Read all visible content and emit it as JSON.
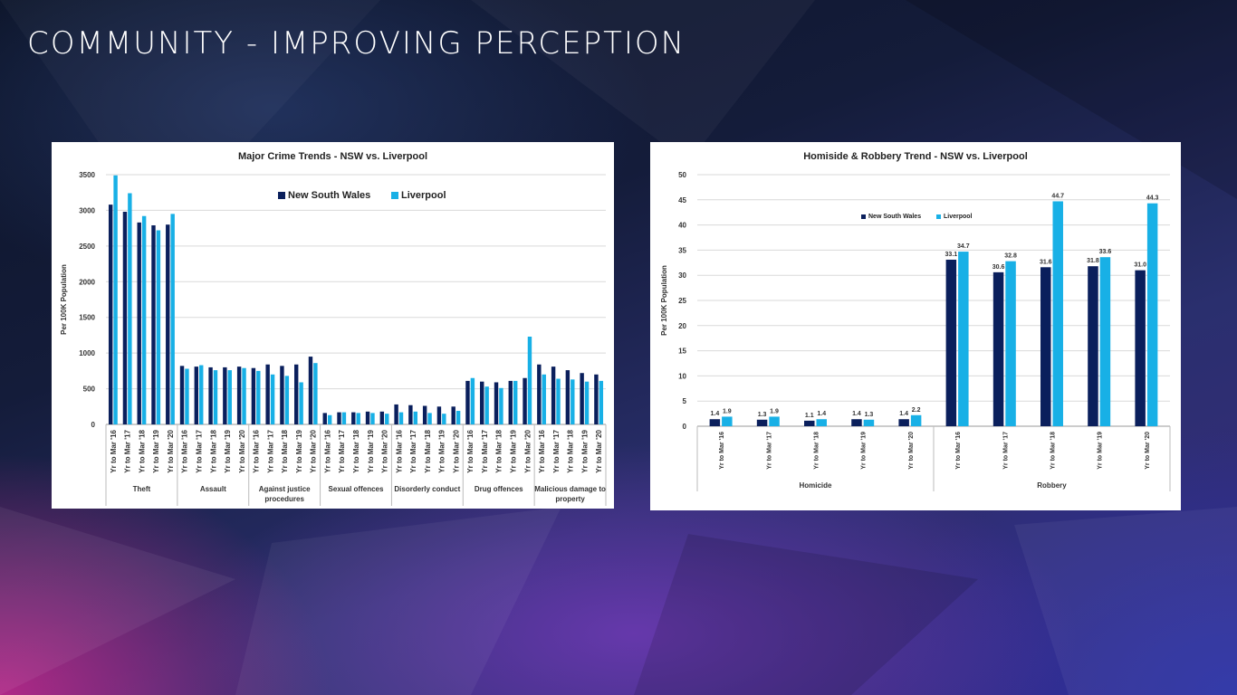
{
  "page": {
    "title": "COMMUNITY - IMPROVING PERCEPTION"
  },
  "colors": {
    "nsw": "#0a1f5c",
    "liverpool": "#18b0e6",
    "grid": "#d9d9d9"
  },
  "chart_data": [
    {
      "type": "bar",
      "title": "Major Crime Trends - NSW vs. Liverpool",
      "ylabel": "Per 100K Population",
      "xlabel": "",
      "ylim": [
        0,
        3500
      ],
      "yticks": [
        0,
        500,
        1000,
        1500,
        2000,
        2500,
        3000,
        3500
      ],
      "legend_placement": "top-center",
      "grid": true,
      "groups": [
        {
          "name": "Theft",
          "categories": [
            "Yr to Mar '16",
            "Yr to Mar '17",
            "Yr to Mar '18",
            "Yr to Mar '19",
            "Yr to Mar '20"
          ],
          "nsw": [
            3080,
            2980,
            2830,
            2790,
            2800
          ],
          "liverpool": [
            3490,
            3240,
            2920,
            2720,
            2950
          ]
        },
        {
          "name": "Assault",
          "categories": [
            "Yr to Mar '16",
            "Yr to Mar '17",
            "Yr to Mar '18",
            "Yr to Mar '19",
            "Yr to Mar '20"
          ],
          "nsw": [
            820,
            810,
            800,
            800,
            810
          ],
          "liverpool": [
            780,
            830,
            760,
            760,
            790
          ]
        },
        {
          "name": "Against justice procedures",
          "categories": [
            "Yr to Mar '16",
            "Yr to Mar '17",
            "Yr to Mar '18",
            "Yr to Mar '19",
            "Yr to Mar '20"
          ],
          "nsw": [
            790,
            840,
            820,
            840,
            950
          ],
          "liverpool": [
            750,
            700,
            680,
            590,
            860
          ]
        },
        {
          "name": "Sexual offences",
          "categories": [
            "Yr to Mar '16",
            "Yr to Mar '17",
            "Yr to Mar '18",
            "Yr to Mar '19",
            "Yr to Mar '20"
          ],
          "nsw": [
            160,
            170,
            170,
            180,
            180
          ],
          "liverpool": [
            130,
            170,
            160,
            160,
            150
          ]
        },
        {
          "name": "Disorderly conduct",
          "categories": [
            "Yr to Mar '16",
            "Yr to Mar '17",
            "Yr to Mar '18",
            "Yr to Mar '19",
            "Yr to Mar '20"
          ],
          "nsw": [
            280,
            270,
            260,
            250,
            250
          ],
          "liverpool": [
            170,
            180,
            160,
            150,
            190
          ]
        },
        {
          "name": "Drug offences",
          "categories": [
            "Yr to Mar '16",
            "Yr to Mar '17",
            "Yr to Mar '18",
            "Yr to Mar '19",
            "Yr to Mar '20"
          ],
          "nsw": [
            610,
            600,
            590,
            610,
            650
          ],
          "liverpool": [
            650,
            530,
            510,
            610,
            1230
          ]
        },
        {
          "name": "Malicious damage to property",
          "categories": [
            "Yr to Mar '16",
            "Yr to Mar '17",
            "Yr to Mar '18",
            "Yr to Mar '19",
            "Yr to Mar '20"
          ],
          "nsw": [
            840,
            810,
            760,
            720,
            700
          ],
          "liverpool": [
            700,
            640,
            630,
            600,
            610
          ]
        }
      ],
      "series": [
        {
          "name": "New South Wales"
        },
        {
          "name": "Liverpool"
        }
      ]
    },
    {
      "type": "bar",
      "title": "Homiside & Robbery Trend - NSW vs. Liverpool",
      "ylabel": "Per 100K Population",
      "xlabel": "",
      "ylim": [
        0,
        50
      ],
      "yticks": [
        0,
        5,
        10,
        15,
        20,
        25,
        30,
        35,
        40,
        45,
        50
      ],
      "legend_placement": "top-left",
      "grid": true,
      "data_labels": true,
      "groups": [
        {
          "name": "Homicide",
          "categories": [
            "Yr to Mar '16",
            "Yr to Mar '17",
            "Yr to Mar '18",
            "Yr to Mar '19",
            "Yr to Mar '20"
          ],
          "nsw": [
            1.4,
            1.3,
            1.1,
            1.4,
            1.4
          ],
          "liverpool": [
            1.9,
            1.9,
            1.4,
            1.3,
            2.2
          ]
        },
        {
          "name": "Robbery",
          "categories": [
            "Yr to Mar '16",
            "Yr to Mar '17",
            "Yr to Mar '18",
            "Yr to Mar '19",
            "Yr to Mar '20"
          ],
          "nsw": [
            33.1,
            30.6,
            31.6,
            31.8,
            31.0
          ],
          "liverpool": [
            34.7,
            32.8,
            44.7,
            33.6,
            44.3
          ]
        }
      ],
      "series": [
        {
          "name": "New South Wales"
        },
        {
          "name": "Liverpool"
        }
      ]
    }
  ]
}
